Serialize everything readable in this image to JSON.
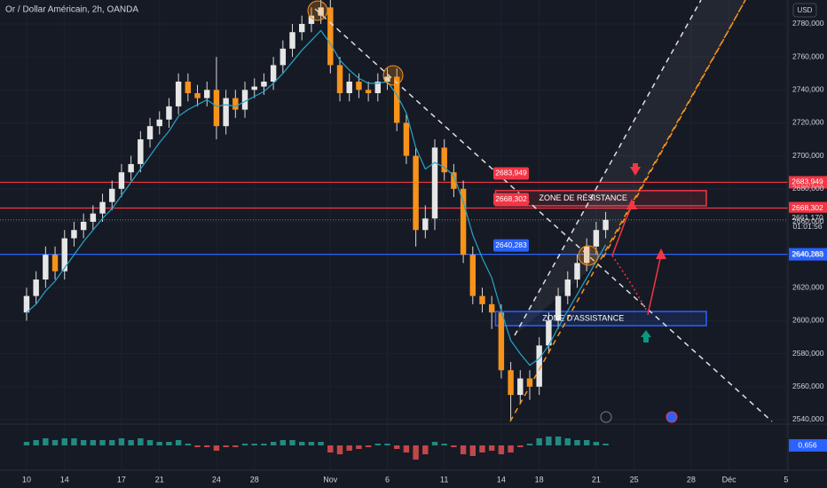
{
  "chart_data": {
    "type": "candlestick",
    "title": "Or / Dollar Américain, 2h, OANDA",
    "currency": "USD",
    "xlim": [
      -1.4,
      40.1
    ],
    "xticks": [
      {
        "value": 0,
        "label": "10"
      },
      {
        "value": 2,
        "label": "14"
      },
      {
        "value": 5,
        "label": "17"
      },
      {
        "value": 7,
        "label": "21"
      },
      {
        "value": 10,
        "label": "24"
      },
      {
        "value": 12,
        "label": "28"
      },
      {
        "value": 16,
        "label": "Nov"
      },
      {
        "value": 19,
        "label": "6"
      },
      {
        "value": 22,
        "label": "11"
      },
      {
        "value": 25,
        "label": "14"
      },
      {
        "value": 27,
        "label": "18"
      },
      {
        "value": 30,
        "label": "21"
      },
      {
        "value": 32,
        "label": "25"
      },
      {
        "value": 35,
        "label": "28"
      },
      {
        "value": 37,
        "label": "Déc"
      },
      {
        "value": 40,
        "label": "5"
      }
    ],
    "ylim": [
      2537.3,
      2794.5
    ],
    "yticks": [
      {
        "value": 2540,
        "label": "2540,000"
      },
      {
        "value": 2560,
        "label": "2560,000"
      },
      {
        "value": 2580,
        "label": "2580,000"
      },
      {
        "value": 2600,
        "label": "2600,000"
      },
      {
        "value": 2620,
        "label": "2620,000"
      },
      {
        "value": 2640,
        "label": "2640,000"
      },
      {
        "value": 2660,
        "label": "2660,000"
      },
      {
        "value": 2680,
        "label": "2680,000"
      },
      {
        "value": 2700,
        "label": "2700,000"
      },
      {
        "value": 2720,
        "label": "2720,000"
      },
      {
        "value": 2740,
        "label": "2740,000"
      },
      {
        "value": 2760,
        "label": "2760,000"
      },
      {
        "value": 2780,
        "label": "2780,000"
      }
    ],
    "up_color": "#e6e6e6",
    "down_color": "#f7931a",
    "x": [
      0,
      0.5,
      1,
      1.5,
      2,
      2.5,
      3,
      3.5,
      4,
      4.5,
      5,
      5.5,
      6,
      6.5,
      7,
      7.5,
      8,
      8.5,
      9,
      9.5,
      10,
      10.5,
      11,
      11.5,
      12,
      12.5,
      13,
      13.5,
      14,
      14.5,
      15,
      15.5,
      16,
      16.5,
      17,
      17.5,
      18,
      18.5,
      19,
      19.5,
      20,
      20.5,
      21,
      21.5,
      22,
      22.5,
      23,
      23.5,
      24,
      24.5,
      25,
      25.5,
      26,
      26.5,
      27,
      27.5,
      28,
      28.5,
      29,
      29.5,
      30,
      30.5
    ],
    "open": [
      2605,
      2615,
      2625,
      2640,
      2630,
      2650,
      2655,
      2660,
      2665,
      2672,
      2680,
      2690,
      2695,
      2710,
      2718,
      2722,
      2730,
      2745,
      2738,
      2735,
      2740,
      2718,
      2735,
      2728,
      2740,
      2742,
      2745,
      2755,
      2765,
      2775,
      2780,
      2785,
      2790,
      2755,
      2738,
      2745,
      2740,
      2738,
      2745,
      2748,
      2720,
      2700,
      2655,
      2662,
      2705,
      2690,
      2680,
      2640,
      2615,
      2610,
      2605,
      2570,
      2555,
      2565,
      2560,
      2585,
      2600,
      2615,
      2625,
      2635,
      2645,
      2655
    ],
    "high": [
      2620,
      2630,
      2645,
      2645,
      2655,
      2660,
      2665,
      2670,
      2677,
      2685,
      2695,
      2700,
      2715,
      2723,
      2727,
      2735,
      2750,
      2750,
      2743,
      2745,
      2760,
      2740,
      2740,
      2745,
      2747,
      2750,
      2760,
      2770,
      2780,
      2785,
      2790,
      2795,
      2795,
      2760,
      2750,
      2750,
      2745,
      2750,
      2753,
      2753,
      2725,
      2705,
      2670,
      2710,
      2710,
      2695,
      2685,
      2645,
      2620,
      2615,
      2610,
      2575,
      2570,
      2570,
      2590,
      2605,
      2620,
      2630,
      2640,
      2650,
      2660,
      2666
    ],
    "low": [
      2600,
      2610,
      2620,
      2625,
      2625,
      2645,
      2650,
      2655,
      2660,
      2667,
      2675,
      2685,
      2690,
      2705,
      2713,
      2717,
      2725,
      2733,
      2730,
      2730,
      2710,
      2713,
      2723,
      2723,
      2735,
      2737,
      2740,
      2750,
      2760,
      2770,
      2775,
      2780,
      2750,
      2733,
      2733,
      2735,
      2733,
      2733,
      2740,
      2715,
      2695,
      2645,
      2650,
      2655,
      2685,
      2675,
      2635,
      2610,
      2605,
      2595,
      2565,
      2540,
      2550,
      2552,
      2555,
      2580,
      2595,
      2610,
      2620,
      2630,
      2640,
      2650
    ],
    "close": [
      2615,
      2625,
      2640,
      2630,
      2650,
      2655,
      2660,
      2665,
      2672,
      2680,
      2690,
      2695,
      2710,
      2718,
      2722,
      2730,
      2745,
      2738,
      2735,
      2740,
      2718,
      2735,
      2728,
      2740,
      2742,
      2745,
      2755,
      2765,
      2775,
      2780,
      2785,
      2790,
      2755,
      2738,
      2745,
      2740,
      2738,
      2745,
      2748,
      2720,
      2700,
      2655,
      2662,
      2705,
      2690,
      2680,
      2640,
      2615,
      2610,
      2605,
      2570,
      2555,
      2565,
      2560,
      2585,
      2600,
      2615,
      2625,
      2635,
      2645,
      2655,
      2661.17
    ],
    "ma": {
      "color": "#26a5c9",
      "values": [
        2605,
        2610,
        2618,
        2624,
        2632,
        2640,
        2648,
        2655,
        2662,
        2668,
        2676,
        2684,
        2692,
        2700,
        2708,
        2715,
        2724,
        2728,
        2731,
        2734,
        2730,
        2731,
        2730,
        2733,
        2736,
        2739,
        2744,
        2750,
        2757,
        2764,
        2770,
        2776,
        2768,
        2758,
        2752,
        2747,
        2744,
        2744,
        2745,
        2737,
        2726,
        2705,
        2692,
        2696,
        2693,
        2688,
        2672,
        2652,
        2638,
        2626,
        2606,
        2588,
        2580,
        2573,
        2577,
        2585,
        2596,
        2606,
        2616,
        2626,
        2636,
        2646
      ]
    },
    "levels": [
      {
        "value": 2683.949,
        "label": "2683,949",
        "color": "#f23645"
      },
      {
        "value": 2668.302,
        "label": "2668,302",
        "color": "#f23645"
      },
      {
        "value": 2640.283,
        "label": "2640,283",
        "color": "#2962ff"
      }
    ],
    "zones": [
      {
        "label": "ZONE DE RÉSISTANCE",
        "top": 2678.9,
        "bottom": 2669.7,
        "start": 24.7,
        "end": 35.8,
        "color": "#f23645"
      },
      {
        "label": "ZONE D'ASSISTANCE",
        "top": 2605.6,
        "bottom": 2597,
        "start": 24.7,
        "end": 35.8,
        "color": "#2962ff"
      }
    ],
    "last_price": {
      "value": 2661.17,
      "label": "2661,170"
    },
    "countdown": "01:01:56",
    "indicator": {
      "label": "0,656",
      "ylim": [
        -8,
        12
      ],
      "values": [
        2,
        3,
        4,
        3,
        4,
        4,
        3,
        3,
        3,
        3,
        4,
        3,
        4,
        3,
        2,
        2,
        3,
        1,
        -1,
        -1,
        -3,
        -1,
        -1,
        1,
        1,
        1,
        2,
        3,
        3,
        2,
        2,
        2,
        -4,
        -5,
        -3,
        -2,
        -1,
        1,
        1,
        -2,
        -4,
        -8,
        -5,
        2,
        1,
        -1,
        -5,
        -6,
        -4,
        -3,
        -5,
        -4,
        -1,
        1,
        4,
        5,
        5,
        4,
        3,
        3,
        2,
        1
      ]
    }
  }
}
